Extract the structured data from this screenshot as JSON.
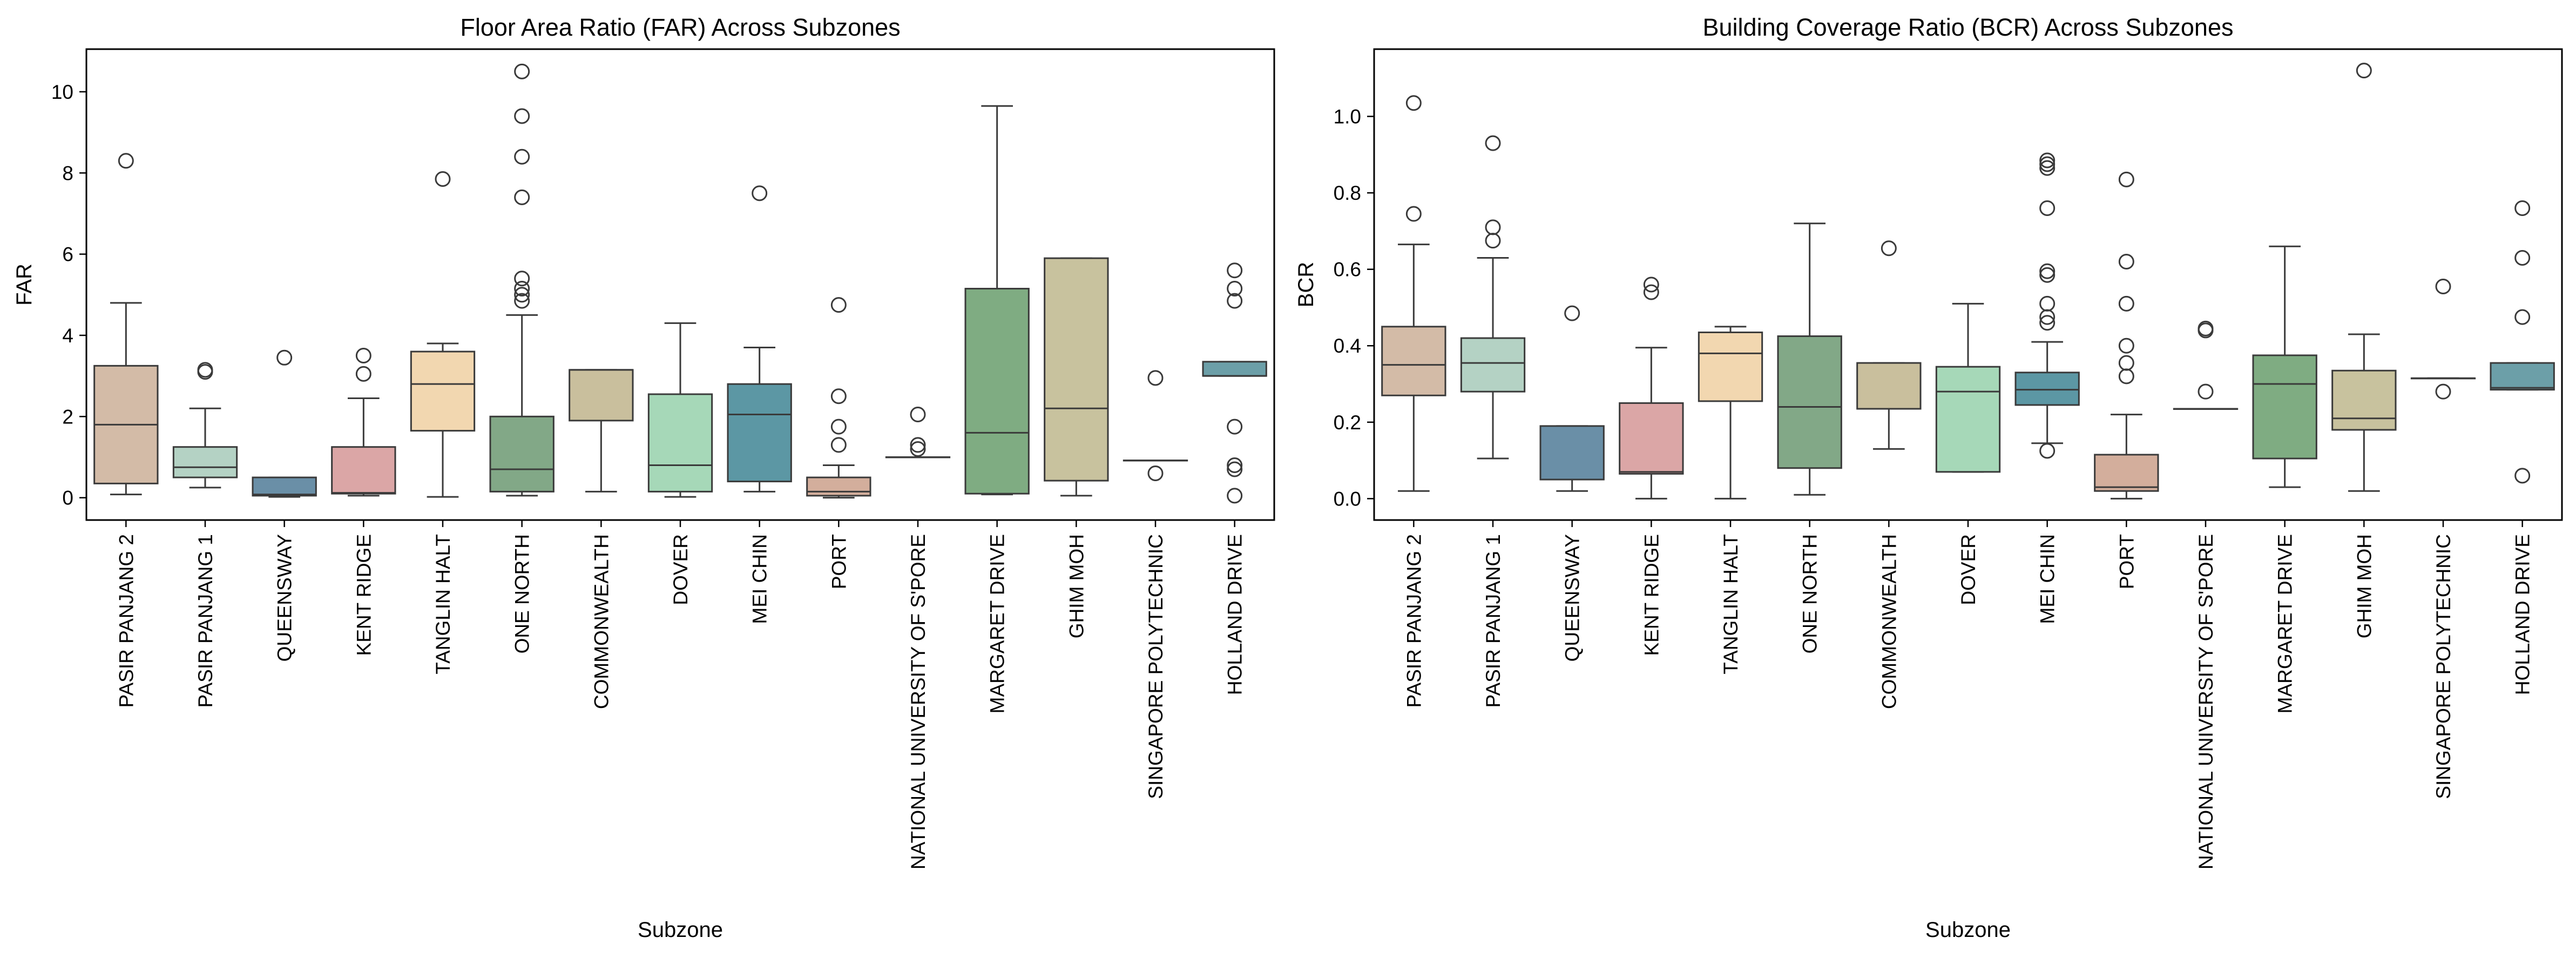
{
  "colors": {
    "palette": [
      "#d3bba7",
      "#b4d2c4",
      "#6a8fa7",
      "#dba6a6",
      "#f2d7b0",
      "#82a887",
      "#c9bf9d",
      "#a6d8b8",
      "#5c97a4",
      "#d3ae9c",
      "#e3d7a3",
      "#7fac82",
      "#c8c29e",
      "#e7d4ab",
      "#6c9fa8"
    ],
    "line": "#3a3a3a",
    "flier_edge": "#3a3a3a"
  },
  "chart_data": [
    {
      "type": "box",
      "title": "Floor Area Ratio (FAR) Across Subzones",
      "xlabel": "Subzone",
      "ylabel": "FAR",
      "ylim": [
        -0.55,
        11.05
      ],
      "yticks": [
        0,
        2,
        4,
        6,
        8,
        10
      ],
      "categories": [
        "PASIR PANJANG 2",
        "PASIR PANJANG 1",
        "QUEENSWAY",
        "KENT RIDGE",
        "TANGLIN HALT",
        "ONE NORTH",
        "COMMONWEALTH",
        "DOVER",
        "MEI CHIN",
        "PORT",
        "NATIONAL UNIVERSITY OF S'PORE",
        "MARGARET DRIVE",
        "GHIM MOH",
        "SINGAPORE POLYTECHNIC",
        "HOLLAND DRIVE"
      ],
      "boxes": [
        {
          "whislo": 0.08,
          "q1": 0.35,
          "med": 1.8,
          "q3": 3.25,
          "whishi": 4.8,
          "fliers": [
            8.3
          ]
        },
        {
          "whislo": 0.25,
          "q1": 0.5,
          "med": 0.75,
          "q3": 1.25,
          "whishi": 2.2,
          "fliers": [
            3.1,
            3.15
          ]
        },
        {
          "whislo": 0.02,
          "q1": 0.05,
          "med": 0.08,
          "q3": 0.5,
          "whishi": 0.5,
          "fliers": [
            3.45
          ]
        },
        {
          "whislo": 0.05,
          "q1": 0.1,
          "med": 0.12,
          "q3": 1.25,
          "whishi": 2.45,
          "fliers": [
            3.05,
            3.5
          ]
        },
        {
          "whislo": 0.02,
          "q1": 1.65,
          "med": 2.8,
          "q3": 3.6,
          "whishi": 3.8,
          "fliers": [
            7.85
          ]
        },
        {
          "whislo": 0.05,
          "q1": 0.15,
          "med": 0.7,
          "q3": 2.0,
          "whishi": 4.5,
          "fliers": [
            4.85,
            5.0,
            5.15,
            5.4,
            7.4,
            8.4,
            9.4,
            10.5
          ]
        },
        {
          "whislo": 0.15,
          "q1": 1.9,
          "med": 3.15,
          "q3": 3.15,
          "whishi": 3.15,
          "fliers": []
        },
        {
          "whislo": 0.02,
          "q1": 0.15,
          "med": 0.8,
          "q3": 2.55,
          "whishi": 4.3,
          "fliers": []
        },
        {
          "whislo": 0.15,
          "q1": 0.4,
          "med": 2.05,
          "q3": 2.8,
          "whishi": 3.7,
          "fliers": [
            7.5
          ]
        },
        {
          "whislo": 0.0,
          "q1": 0.05,
          "med": 0.15,
          "q3": 0.5,
          "whishi": 0.8,
          "fliers": [
            1.3,
            1.75,
            2.5,
            4.75
          ]
        },
        {
          "whislo": 1.0,
          "q1": 1.0,
          "med": 1.0,
          "q3": 1.0,
          "whishi": 1.0,
          "fliers": [
            1.2,
            1.3,
            2.05
          ]
        },
        {
          "whislo": 0.08,
          "q1": 0.1,
          "med": 1.6,
          "q3": 5.15,
          "whishi": 9.65,
          "fliers": []
        },
        {
          "whislo": 0.05,
          "q1": 0.42,
          "med": 2.2,
          "q3": 5.9,
          "whishi": 5.9,
          "fliers": []
        },
        {
          "whislo": 0.92,
          "q1": 0.92,
          "med": 0.92,
          "q3": 0.92,
          "whishi": 0.92,
          "fliers": [
            0.6,
            2.95
          ]
        },
        {
          "whislo": 3.0,
          "q1": 3.0,
          "med": 3.0,
          "q3": 3.35,
          "whishi": 3.35,
          "fliers": [
            0.05,
            0.7,
            0.8,
            1.75,
            4.85,
            5.15,
            5.6
          ]
        }
      ]
    },
    {
      "type": "box",
      "title": "Building Coverage Ratio (BCR) Across Subzones",
      "xlabel": "Subzone",
      "ylabel": "BCR",
      "ylim": [
        -0.056,
        1.176
      ],
      "yticks": [
        0.0,
        0.2,
        0.4,
        0.6,
        0.8,
        1.0
      ],
      "categories": [
        "PASIR PANJANG 2",
        "PASIR PANJANG 1",
        "QUEENSWAY",
        "KENT RIDGE",
        "TANGLIN HALT",
        "ONE NORTH",
        "COMMONWEALTH",
        "DOVER",
        "MEI CHIN",
        "PORT",
        "NATIONAL UNIVERSITY OF S'PORE",
        "MARGARET DRIVE",
        "GHIM MOH",
        "SINGAPORE POLYTECHNIC",
        "HOLLAND DRIVE"
      ],
      "boxes": [
        {
          "whislo": 0.02,
          "q1": 0.27,
          "med": 0.35,
          "q3": 0.45,
          "whishi": 0.665,
          "fliers": [
            0.745,
            1.035
          ]
        },
        {
          "whislo": 0.105,
          "q1": 0.28,
          "med": 0.355,
          "q3": 0.42,
          "whishi": 0.63,
          "fliers": [
            0.675,
            0.71,
            0.93
          ]
        },
        {
          "whislo": 0.02,
          "q1": 0.05,
          "med": 0.05,
          "q3": 0.19,
          "whishi": 0.19,
          "fliers": [
            0.485
          ]
        },
        {
          "whislo": 0.0,
          "q1": 0.065,
          "med": 0.07,
          "q3": 0.25,
          "whishi": 0.395,
          "fliers": [
            0.54,
            0.56
          ]
        },
        {
          "whislo": 0.0,
          "q1": 0.255,
          "med": 0.38,
          "q3": 0.435,
          "whishi": 0.45,
          "fliers": []
        },
        {
          "whislo": 0.01,
          "q1": 0.08,
          "med": 0.24,
          "q3": 0.425,
          "whishi": 0.72,
          "fliers": []
        },
        {
          "whislo": 0.13,
          "q1": 0.235,
          "med": 0.235,
          "q3": 0.355,
          "whishi": 0.355,
          "fliers": [
            0.655
          ]
        },
        {
          "whislo": 0.07,
          "q1": 0.07,
          "med": 0.28,
          "q3": 0.345,
          "whishi": 0.51,
          "fliers": []
        },
        {
          "whislo": 0.145,
          "q1": 0.245,
          "med": 0.285,
          "q3": 0.33,
          "whishi": 0.41,
          "fliers": [
            0.125,
            0.46,
            0.475,
            0.51,
            0.585,
            0.595,
            0.76,
            0.865,
            0.875,
            0.885
          ]
        },
        {
          "whislo": 0.0,
          "q1": 0.02,
          "med": 0.03,
          "q3": 0.115,
          "whishi": 0.22,
          "fliers": [
            0.32,
            0.355,
            0.4,
            0.51,
            0.62,
            0.835
          ]
        },
        {
          "whislo": 0.235,
          "q1": 0.235,
          "med": 0.235,
          "q3": 0.235,
          "whishi": 0.235,
          "fliers": [
            0.28,
            0.44,
            0.445
          ]
        },
        {
          "whislo": 0.03,
          "q1": 0.105,
          "med": 0.3,
          "q3": 0.375,
          "whishi": 0.66,
          "fliers": []
        },
        {
          "whislo": 0.02,
          "q1": 0.18,
          "med": 0.21,
          "q3": 0.335,
          "whishi": 0.43,
          "fliers": [
            1.12
          ]
        },
        {
          "whislo": 0.315,
          "q1": 0.315,
          "med": 0.315,
          "q3": 0.315,
          "whishi": 0.315,
          "fliers": [
            0.28,
            0.555
          ]
        },
        {
          "whislo": 0.285,
          "q1": 0.285,
          "med": 0.29,
          "q3": 0.355,
          "whishi": 0.355,
          "fliers": [
            0.06,
            0.475,
            0.63,
            0.76
          ]
        }
      ]
    }
  ]
}
